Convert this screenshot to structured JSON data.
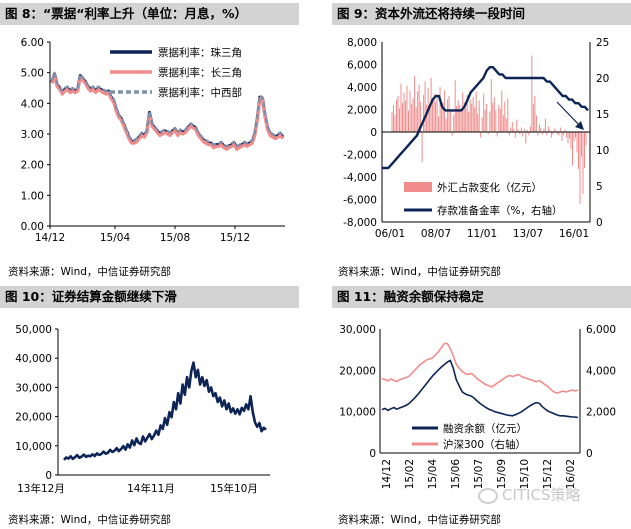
{
  "panels": {
    "p8": {
      "title": "图 8：“票据“利率上升（单位：月息，%）",
      "source": "资料来源：Wind，中信证券研究部"
    },
    "p9": {
      "title": "图 9：资本外流还将持续一段时间",
      "source": "资料来源：Wind，中信证券研究部"
    },
    "p10": {
      "title": "图 10：证券结算金额继续下滑",
      "source": "资料来源：Wind，中信证券研究部"
    },
    "p11": {
      "title": "图 11：融资余额保持稳定",
      "source": "资料来源：Wind，中信证券研究部"
    }
  },
  "watermark": {
    "text": "CITICS策略"
  },
  "colors": {
    "navy": "#0d2457",
    "salmon": "#f08c8c",
    "slate": "#7f8fab",
    "grid": "#d9d9d9",
    "title_bg": "#d3d3d3"
  },
  "chart_data": [
    {
      "id": "p8",
      "type": "line",
      "ylim": [
        0,
        6
      ],
      "yticks": [
        "0.00",
        "1.00",
        "2.00",
        "3.00",
        "4.00",
        "5.00",
        "6.00"
      ],
      "xticks": [
        "14/12",
        "15/04",
        "15/08",
        "15/12"
      ],
      "series": [
        {
          "name": "票据利率：珠三角",
          "color": "#0d2457",
          "width": 3.2,
          "dash": "",
          "values": [
            4.7,
            4.95,
            4.6,
            4.5,
            4.35,
            4.45,
            4.5,
            4.4,
            4.45,
            4.4,
            4.45,
            4.9,
            4.8,
            4.7,
            4.55,
            4.45,
            4.5,
            4.4,
            4.5,
            4.45,
            4.4,
            4.35,
            4.4,
            4.2,
            4.1,
            3.8,
            3.6,
            3.5,
            3.3,
            3.1,
            2.9,
            2.75,
            2.75,
            2.8,
            2.9,
            3.0,
            2.95,
            3.1,
            3.7,
            3.3,
            3.2,
            3.1,
            3.0,
            3.05,
            3.1,
            3.05,
            3.0,
            3.1,
            3.15,
            3.0,
            3.1,
            3.05,
            3.1,
            3.2,
            3.3,
            3.25,
            3.2,
            3.0,
            2.9,
            2.8,
            2.75,
            2.7,
            2.7,
            2.6,
            2.65,
            2.65,
            2.7,
            2.6,
            2.55,
            2.6,
            2.65,
            2.7,
            2.55,
            2.6,
            2.65,
            2.7,
            2.65,
            2.7,
            2.75,
            3.0,
            3.5,
            4.2,
            4.15,
            3.6,
            3.2,
            3.0,
            2.95,
            2.9,
            2.95,
            3.0,
            2.9
          ]
        },
        {
          "name": "票据利率：长三角",
          "color": "#f08c8c",
          "width": 3.2,
          "dash": "",
          "values": [
            4.65,
            4.9,
            4.55,
            4.45,
            4.3,
            4.4,
            4.45,
            4.35,
            4.4,
            4.35,
            4.4,
            4.85,
            4.75,
            4.65,
            4.5,
            4.4,
            4.45,
            4.35,
            4.45,
            4.4,
            4.35,
            4.3,
            4.35,
            4.15,
            4.05,
            3.75,
            3.55,
            3.45,
            3.25,
            3.05,
            2.85,
            2.7,
            2.7,
            2.75,
            2.85,
            2.95,
            2.9,
            3.05,
            3.65,
            3.25,
            3.15,
            3.05,
            2.95,
            3.0,
            3.05,
            3.0,
            2.95,
            3.05,
            3.1,
            2.95,
            3.05,
            3.0,
            3.05,
            3.15,
            3.25,
            3.2,
            3.15,
            2.95,
            2.85,
            2.75,
            2.7,
            2.65,
            2.65,
            2.55,
            2.6,
            2.6,
            2.65,
            2.55,
            2.5,
            2.55,
            2.6,
            2.65,
            2.5,
            2.55,
            2.6,
            2.65,
            2.6,
            2.65,
            2.7,
            2.95,
            3.45,
            4.15,
            4.1,
            3.55,
            3.15,
            2.95,
            2.9,
            2.85,
            2.9,
            2.95,
            2.85
          ]
        },
        {
          "name": "票据利率：中西部",
          "color": "#7f8fab",
          "width": 2.2,
          "dash": "5,3",
          "values": [
            4.75,
            5.0,
            4.65,
            4.55,
            4.4,
            4.5,
            4.55,
            4.45,
            4.5,
            4.45,
            4.5,
            4.95,
            4.85,
            4.75,
            4.6,
            4.5,
            4.55,
            4.45,
            4.55,
            4.5,
            4.45,
            4.4,
            4.45,
            4.25,
            4.15,
            3.85,
            3.65,
            3.55,
            3.35,
            3.15,
            2.95,
            2.8,
            2.8,
            2.85,
            2.95,
            3.05,
            3.0,
            3.15,
            3.75,
            3.35,
            3.25,
            3.15,
            3.05,
            3.1,
            3.15,
            3.1,
            3.05,
            3.15,
            3.2,
            3.05,
            3.15,
            3.1,
            3.15,
            3.25,
            3.35,
            3.3,
            3.25,
            3.05,
            2.95,
            2.85,
            2.8,
            2.75,
            2.75,
            2.65,
            2.7,
            2.7,
            2.75,
            2.65,
            2.6,
            2.65,
            2.7,
            2.75,
            2.6,
            2.65,
            2.7,
            2.75,
            2.7,
            2.75,
            2.8,
            3.05,
            3.55,
            4.25,
            4.2,
            3.65,
            3.25,
            3.05,
            3.0,
            2.95,
            3.0,
            3.05,
            2.95
          ]
        }
      ]
    },
    {
      "id": "p9",
      "type": "bar+line",
      "ylim_left": [
        -8000,
        8000
      ],
      "yticks_left": [
        "-8,000",
        "-6,000",
        "-4,000",
        "-2,000",
        "0",
        "2,000",
        "4,000",
        "6,000",
        "8,000"
      ],
      "ylim_right": [
        0,
        25
      ],
      "yticks_right": [
        "0",
        "5",
        "10",
        "15",
        "20",
        "25"
      ],
      "xticks": [
        "06/01",
        "08/07",
        "11/01",
        "13/07",
        "16/01"
      ],
      "bars": {
        "name": "外汇占款变化（亿元）",
        "color": "#f08c8c",
        "values": [
          1800,
          2400,
          1500,
          2900,
          3200,
          2100,
          4300,
          2600,
          3500,
          2800,
          4100,
          1900,
          3700,
          2500,
          3000,
          5000,
          2200,
          3600,
          4200,
          2700,
          -2700,
          3300,
          4500,
          2400,
          3900,
          2100,
          4800,
          2900,
          3400,
          2700,
          3100,
          1400,
          4000,
          2200,
          2600,
          3700,
          1200,
          2900,
          3200,
          2000,
          -300,
          1500,
          4600,
          2300,
          2800,
          2400,
          1900,
          3500,
          2600,
          2100,
          3300,
          1800,
          2900,
          2500,
          3100,
          2200,
          3600,
          1600,
          2800,
          -500,
          1300,
          3400,
          2000,
          2500,
          -200,
          1800,
          4700,
          2600,
          3100,
          1900,
          -400,
          2400,
          2100,
          3700,
          1500,
          2700,
          1200,
          3000,
          -300,
          400,
          900,
          300,
          -500,
          1100,
          200,
          -200,
          400,
          -400,
          300,
          -1000,
          200,
          -300,
          500,
          6800,
          2500,
          3200,
          1500,
          -300,
          700,
          400,
          -200,
          300,
          1200,
          -300,
          500,
          200,
          -500,
          -200,
          300,
          100,
          -200,
          -300,
          400,
          -800,
          -300,
          200,
          -500,
          -1000,
          -600,
          -1500,
          -3000,
          -800,
          -500,
          -1800,
          -3300,
          -6400,
          -2200,
          -5500,
          -3200,
          -1200
        ]
      },
      "line": {
        "name": "存款准备金率（%，右轴）",
        "color": "#0d2457",
        "values": [
          7.5,
          7.5,
          7.5,
          8,
          8.5,
          9,
          9.5,
          10,
          10.5,
          11,
          11.5,
          12,
          13,
          14,
          15,
          16,
          17,
          17.5,
          17.5,
          16,
          15.5,
          15.5,
          15.5,
          15.5,
          15.5,
          15.5,
          16,
          17,
          18,
          18.5,
          19,
          19.5,
          20,
          21,
          21.5,
          21.5,
          21,
          20.5,
          20.5,
          20,
          20,
          20,
          20,
          20,
          20,
          20,
          20,
          20,
          20,
          20,
          20,
          20,
          19.5,
          19.5,
          19,
          18.5,
          18,
          17.5,
          17.5,
          17,
          17,
          16.5,
          16.5,
          16,
          16,
          15.5
        ]
      },
      "arrow": true
    },
    {
      "id": "p10",
      "type": "line",
      "ylim": [
        0,
        50000
      ],
      "yticks": [
        "0",
        "10,000",
        "20,000",
        "30,000",
        "40,000",
        "50,000"
      ],
      "xticks": [
        "13年12月",
        "14年11月",
        "15年10月"
      ],
      "series": [
        {
          "name": "证券结算金额",
          "color": "#0d2457",
          "width": 2.6,
          "dash": "",
          "values": [
            5200,
            6000,
            5600,
            6400,
            5500,
            6100,
            6800,
            5900,
            6300,
            7000,
            6200,
            6600,
            6400,
            7100,
            6500,
            7400,
            6900,
            7200,
            8000,
            7300,
            7600,
            8600,
            7900,
            8300,
            9200,
            8200,
            8900,
            9900,
            8700,
            10500,
            9400,
            11800,
            10200,
            12500,
            11000,
            10600,
            13200,
            11500,
            12800,
            14000,
            12300,
            13500,
            15200,
            13800,
            17000,
            15800,
            19500,
            17200,
            21500,
            19800,
            25000,
            22500,
            28000,
            24500,
            31000,
            27500,
            33500,
            30000,
            35500,
            38500,
            33500,
            36000,
            31000,
            33500,
            30500,
            32500,
            28500,
            30000,
            27000,
            28000,
            25000,
            26500,
            23500,
            25500,
            22500,
            24500,
            21500,
            22800,
            21000,
            22500,
            20800,
            23000,
            22000,
            24200,
            22500,
            27000,
            21500,
            18000,
            16500,
            17800,
            15000,
            16200,
            15500
          ]
        }
      ]
    },
    {
      "id": "p11",
      "type": "line-dual",
      "ylim_left": [
        0,
        30000
      ],
      "yticks_left": [
        "0",
        "10,000",
        "20,000",
        "30,000"
      ],
      "ylim_right": [
        0,
        6000
      ],
      "yticks_right": [
        "0",
        "2,000",
        "4,000",
        "6,000"
      ],
      "xticks": [
        "14/12",
        "15/02",
        "15/04",
        "15/06",
        "15/07",
        "15/09",
        "15/10",
        "15/12",
        "16/02"
      ],
      "series": [
        {
          "name": "融资余额（亿元）",
          "axis": "left",
          "color": "#0d2457",
          "width": 1.6,
          "values": [
            10500,
            10800,
            10300,
            10700,
            11000,
            10600,
            10900,
            11200,
            11500,
            11900,
            12600,
            13300,
            14100,
            15000,
            15900,
            16800,
            17700,
            18600,
            19400,
            20100,
            20800,
            21400,
            22000,
            22400,
            20500,
            17800,
            16200,
            14800,
            14300,
            14000,
            13800,
            13300,
            12600,
            12000,
            11500,
            11000,
            10600,
            10300,
            10000,
            9800,
            9600,
            9400,
            9200,
            9100,
            9000,
            9300,
            9600,
            10000,
            10500,
            11000,
            11500,
            11900,
            12200,
            12000,
            11200,
            10600,
            10100,
            9800,
            9500,
            9200,
            9000,
            9000,
            8900,
            8800,
            8700,
            8700,
            8600
          ]
        },
        {
          "name": "沪深300（右轴）",
          "axis": "right",
          "color": "#f08c8c",
          "width": 1.6,
          "values": [
            3600,
            3550,
            3500,
            3580,
            3520,
            3450,
            3550,
            3600,
            3650,
            3700,
            3850,
            4000,
            4150,
            4300,
            4400,
            4500,
            4550,
            4600,
            4750,
            4900,
            5100,
            5300,
            5300,
            5050,
            4700,
            4300,
            4100,
            3950,
            3850,
            3800,
            3850,
            3750,
            3600,
            3500,
            3400,
            3300,
            3250,
            3200,
            3300,
            3400,
            3500,
            3600,
            3700,
            3750,
            3700,
            3750,
            3800,
            3700,
            3650,
            3600,
            3550,
            3500,
            3450,
            3500,
            3400,
            3300,
            3200,
            3050,
            2950,
            2900,
            2950,
            3000,
            2950,
            3000,
            3050,
            3000,
            3050
          ]
        }
      ]
    }
  ]
}
